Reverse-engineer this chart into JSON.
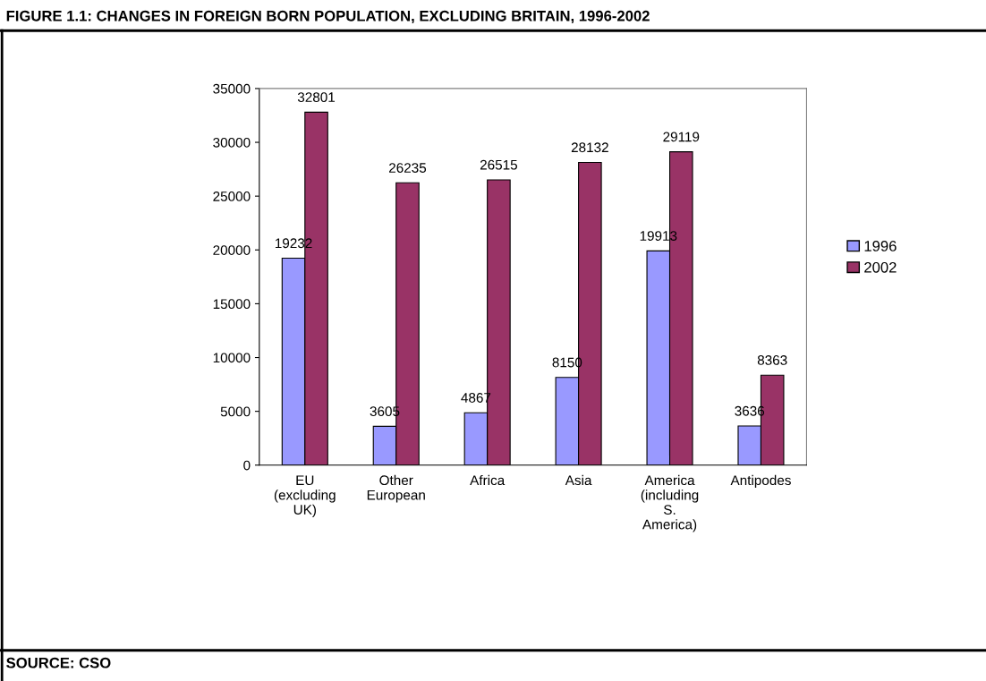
{
  "chart_data": {
    "type": "bar",
    "title": "FIGURE 1.1: CHANGES IN FOREIGN BORN POPULATION, EXCLUDING BRITAIN, 1996-2002",
    "categories": [
      "EU (excluding UK)",
      "Other European",
      "Africa",
      "Asia",
      "America (including S. America)",
      "Antipodes"
    ],
    "series": [
      {
        "name": "1996",
        "color": "#9999ff",
        "values": [
          19232,
          3605,
          4867,
          8150,
          19913,
          3636
        ]
      },
      {
        "name": "2002",
        "color": "#993366",
        "values": [
          32801,
          26235,
          26515,
          28132,
          29119,
          8363
        ]
      }
    ],
    "ylim": [
      0,
      35000
    ],
    "yticks": [
      0,
      5000,
      10000,
      15000,
      20000,
      25000,
      30000,
      35000
    ],
    "grid": false,
    "legend": "right",
    "data_labels": true,
    "annotations": [
      "SOURCE: CSO"
    ]
  }
}
